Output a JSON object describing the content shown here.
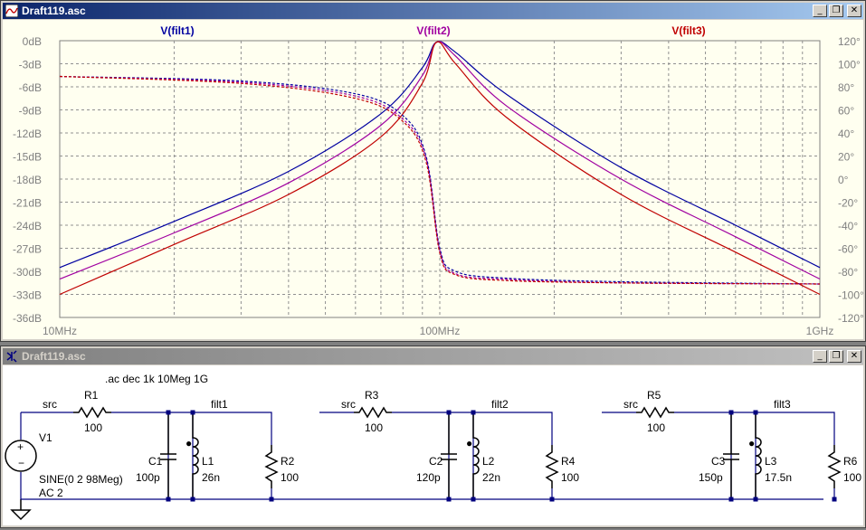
{
  "waveform_window": {
    "title": "Draft119.asc",
    "buttons": {
      "minimize": "_",
      "restore": "❐",
      "close": "✕"
    },
    "traces": [
      {
        "label": "V(filt1)",
        "color": "#0000a0"
      },
      {
        "label": "V(filt2)",
        "color": "#a000a0"
      },
      {
        "label": "V(filt3)",
        "color": "#c00000"
      }
    ],
    "y_left_ticks": [
      "0dB",
      "-3dB",
      "-6dB",
      "-9dB",
      "-12dB",
      "-15dB",
      "-18dB",
      "-21dB",
      "-24dB",
      "-27dB",
      "-30dB",
      "-33dB",
      "-36dB"
    ],
    "y_right_ticks": [
      "120°",
      "100°",
      "80°",
      "60°",
      "40°",
      "20°",
      "0°",
      "-20°",
      "-40°",
      "-60°",
      "-80°",
      "-100°",
      "-120°"
    ],
    "x_ticks": [
      "10MHz",
      "100MHz",
      "1GHz"
    ]
  },
  "chart_data": {
    "type": "line",
    "x_scale": "log",
    "xlim_hz": [
      10000000,
      1000000000
    ],
    "ylim_db": [
      -36,
      0
    ],
    "ylim_phase_deg": [
      -120,
      120
    ],
    "grid": true,
    "series": [
      {
        "name": "V(filt1)",
        "kind": "magnitude",
        "x_hz": [
          10000000,
          20000000,
          40000000,
          70000000,
          90000000,
          98000000,
          110000000,
          150000000,
          300000000,
          600000000,
          1000000000
        ],
        "y_db": [
          -29.5,
          -23.5,
          -17,
          -9.5,
          -3.5,
          -0.2,
          -1.5,
          -7,
          -16.5,
          -24,
          -29.5
        ]
      },
      {
        "name": "V(filt2)",
        "kind": "magnitude",
        "x_hz": [
          10000000,
          20000000,
          40000000,
          70000000,
          90000000,
          98000000,
          110000000,
          150000000,
          300000000,
          600000000,
          1000000000
        ],
        "y_db": [
          -31,
          -25,
          -18.5,
          -11,
          -4.5,
          -0.2,
          -2,
          -8.5,
          -18,
          -25.5,
          -31
        ]
      },
      {
        "name": "V(filt3)",
        "kind": "magnitude",
        "x_hz": [
          10000000,
          20000000,
          40000000,
          70000000,
          90000000,
          98000000,
          110000000,
          150000000,
          300000000,
          600000000,
          1000000000
        ],
        "y_db": [
          -33,
          -26.5,
          -20,
          -12.5,
          -5.5,
          -0.2,
          -3,
          -10,
          -20,
          -27.5,
          -33
        ]
      },
      {
        "name": "V(filt1)",
        "kind": "phase",
        "x_hz": [
          10000000,
          30000000,
          60000000,
          80000000,
          92000000,
          100000000,
          110000000,
          150000000,
          300000000,
          1000000000
        ],
        "y_deg": [
          89,
          85,
          74,
          55,
          20,
          -60,
          -80,
          -86,
          -89,
          -91
        ]
      },
      {
        "name": "V(filt2)",
        "kind": "phase",
        "x_hz": [
          10000000,
          30000000,
          60000000,
          80000000,
          92000000,
          100000000,
          110000000,
          150000000,
          300000000,
          1000000000
        ],
        "y_deg": [
          89,
          84,
          72,
          52,
          18,
          -62,
          -82,
          -87,
          -90,
          -91
        ]
      },
      {
        "name": "V(filt3)",
        "kind": "phase",
        "x_hz": [
          10000000,
          30000000,
          60000000,
          80000000,
          92000000,
          100000000,
          110000000,
          150000000,
          300000000,
          1000000000
        ],
        "y_deg": [
          89,
          83,
          70,
          50,
          15,
          -64,
          -83,
          -88,
          -90,
          -91
        ]
      }
    ]
  },
  "schematic_window": {
    "title": "Draft119.asc",
    "buttons": {
      "minimize": "_",
      "restore": "❐",
      "close": "✕"
    },
    "directive": ".ac dec 1k 10Meg 1G",
    "source": {
      "name": "V1",
      "value1": "SINE(0 2 98Meg)",
      "value2": "AC 2"
    },
    "stages": [
      {
        "src": "src",
        "r_in": "R1",
        "r_in_val": "100",
        "net": "filt1",
        "cap": "C1",
        "cap_val": "100p",
        "ind": "L1",
        "ind_val": "26n",
        "r_load": "R2",
        "r_load_val": "100"
      },
      {
        "src": "src",
        "r_in": "R3",
        "r_in_val": "100",
        "net": "filt2",
        "cap": "C2",
        "cap_val": "120p",
        "ind": "L2",
        "ind_val": "22n",
        "r_load": "R4",
        "r_load_val": "100"
      },
      {
        "src": "src",
        "r_in": "R5",
        "r_in_val": "100",
        "net": "filt3",
        "cap": "C3",
        "cap_val": "150p",
        "ind": "L3",
        "ind_val": "17.5n",
        "r_load": "R6",
        "r_load_val": "100"
      }
    ]
  }
}
